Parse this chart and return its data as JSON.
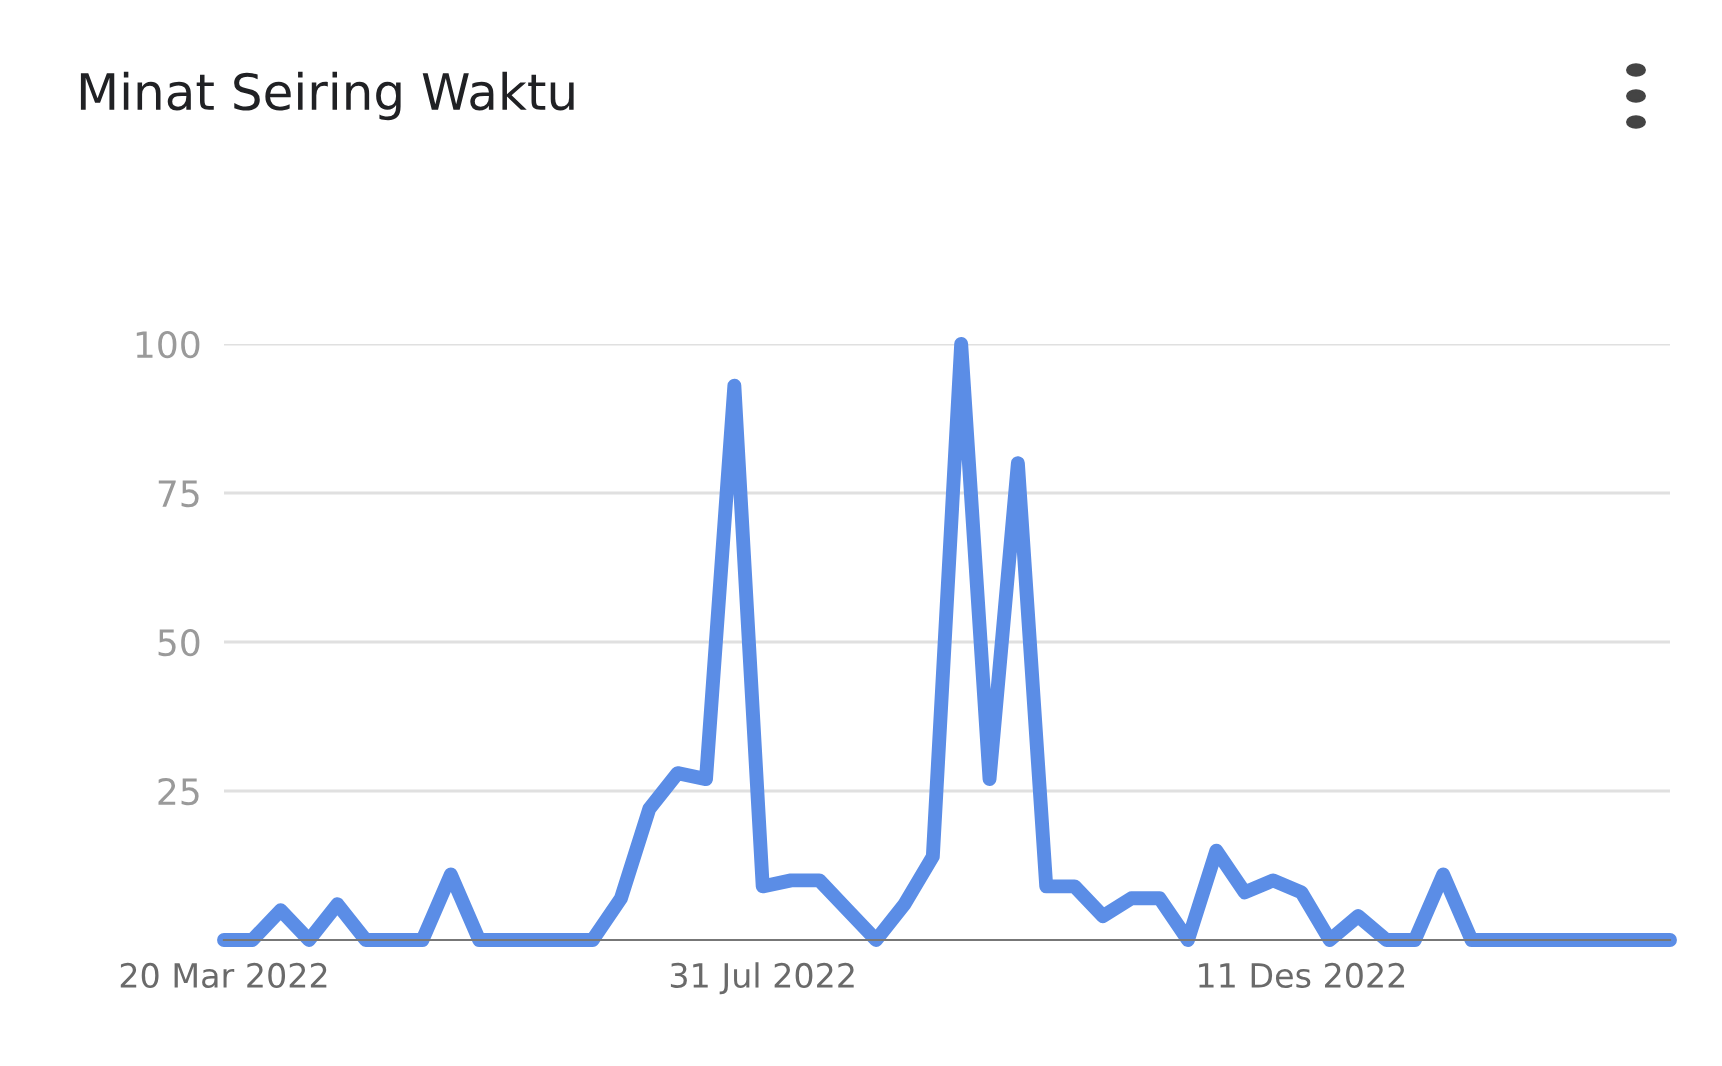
{
  "chart_data": {
    "type": "line",
    "title": "Minat Seiring Waktu",
    "x": [
      "2022-03-20",
      "2022-03-27",
      "2022-04-03",
      "2022-04-10",
      "2022-04-17",
      "2022-04-24",
      "2022-05-01",
      "2022-05-08",
      "2022-05-15",
      "2022-05-22",
      "2022-05-29",
      "2022-06-05",
      "2022-06-12",
      "2022-06-19",
      "2022-06-26",
      "2022-07-03",
      "2022-07-10",
      "2022-07-17",
      "2022-07-24",
      "2022-07-31",
      "2022-08-07",
      "2022-08-14",
      "2022-08-21",
      "2022-08-28",
      "2022-09-04",
      "2022-09-11",
      "2022-09-18",
      "2022-09-25",
      "2022-10-02",
      "2022-10-09",
      "2022-10-16",
      "2022-10-23",
      "2022-10-30",
      "2022-11-06",
      "2022-11-13",
      "2022-11-20",
      "2022-11-27",
      "2022-12-04",
      "2022-12-11",
      "2022-12-18",
      "2022-12-25",
      "2023-01-01",
      "2023-01-08",
      "2023-01-15",
      "2023-01-22",
      "2023-01-29",
      "2023-02-05",
      "2023-02-12",
      "2023-02-19",
      "2023-02-26",
      "2023-03-05",
      "2023-03-12"
    ],
    "series": [
      {
        "color": "#5b8de6",
        "values": [
          0,
          0,
          5,
          0,
          6,
          0,
          0,
          0,
          11,
          0,
          0,
          0,
          0,
          0,
          7,
          22,
          28,
          27,
          93,
          9,
          10,
          10,
          5,
          0,
          6,
          14,
          100,
          27,
          80,
          9,
          9,
          4,
          7,
          7,
          0,
          15,
          8,
          10,
          8,
          0,
          4,
          0,
          0,
          11,
          0,
          0,
          0,
          0,
          0,
          0,
          0,
          0
        ]
      }
    ],
    "xlim": [
      "2022-03-20",
      "2023-03-12"
    ],
    "xticks": [
      {
        "value": "2022-03-20",
        "label": "20 Mar 2022"
      },
      {
        "value": "2022-07-31",
        "label": "31 Jul 2022"
      },
      {
        "value": "2022-12-11",
        "label": "11 Des 2022"
      }
    ],
    "ylim": [
      0,
      100
    ],
    "yticks": [
      25,
      50,
      75,
      100
    ],
    "grid": "y",
    "marker": "none",
    "line_style": "solid"
  }
}
